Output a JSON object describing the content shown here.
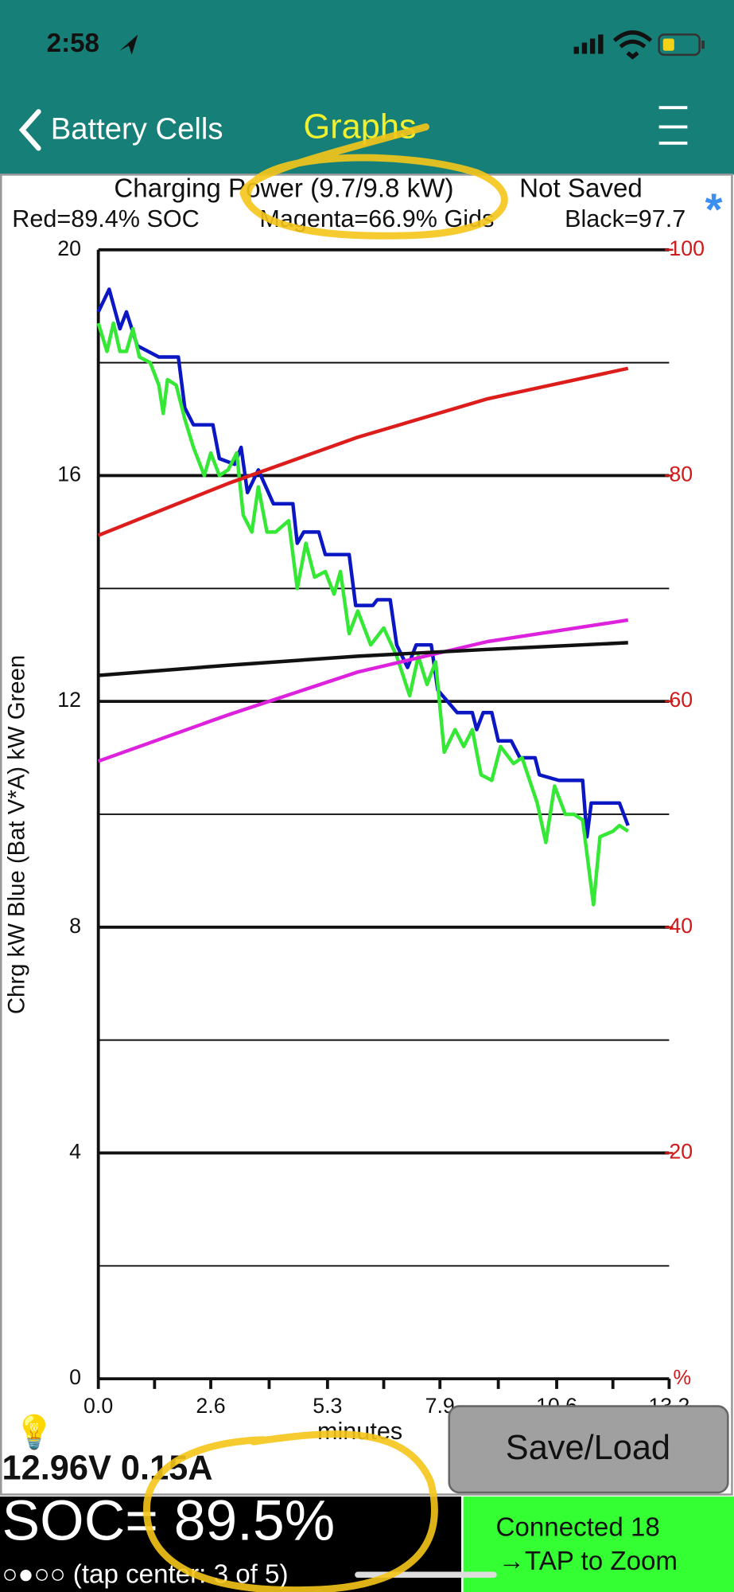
{
  "status_bar": {
    "time": "2:58"
  },
  "nav": {
    "back": "Battery Cells",
    "title": "Graphs"
  },
  "chart_data": {
    "type": "line",
    "title": "Charging Power (9.7/9.8 kW)",
    "save_state": "Not Saved",
    "subtitle": [
      "Red=89.4% SOC",
      "Magenta=66.9% Gids",
      "Black=97.7"
    ],
    "marker": "*",
    "x_label": "minutes",
    "y_label": "Chrg kW Blue  (Bat V*A) kW Green",
    "y2_unit": "%",
    "xlim": [
      0,
      13.2
    ],
    "xticks": [
      {
        "value": 0,
        "label": "0.0"
      },
      2.6,
      5.3,
      7.9,
      10.6,
      13.2
    ],
    "minor_xticks": [
      1.3,
      3.95,
      6.6,
      9.25,
      11.9
    ],
    "ylim": [
      0,
      20
    ],
    "yticks": [
      0,
      4,
      8,
      12,
      16,
      20
    ],
    "minor_yticks": [
      2,
      6,
      10,
      14,
      18
    ],
    "y2lim": [
      0,
      100
    ],
    "y2ticks": [
      20,
      40,
      60,
      80,
      100
    ],
    "series": [
      {
        "color": "#0c17c4",
        "x": [
          0,
          0.25,
          0.5,
          0.65,
          0.9,
          1.4,
          1.85,
          2.0,
          2.2,
          2.65,
          2.8,
          3.15,
          3.3,
          3.45,
          3.7,
          4.05,
          4.5,
          4.6,
          4.75,
          5.1,
          5.25,
          5.8,
          5.95,
          6.35,
          6.45,
          6.75,
          6.9,
          7.15,
          7.35,
          7.7,
          7.85,
          8.3,
          8.65,
          8.75,
          8.9,
          9.1,
          9.25,
          9.55,
          9.75,
          10.1,
          10.2,
          10.65,
          11.2,
          11.3,
          11.4,
          12.05,
          12.25
        ],
        "values": [
          18.9,
          19.3,
          18.6,
          18.9,
          18.3,
          18.1,
          18.1,
          17.2,
          16.9,
          16.9,
          16.3,
          16.2,
          16.5,
          15.7,
          16.1,
          15.5,
          15.5,
          14.8,
          15.0,
          15.0,
          14.6,
          14.6,
          13.7,
          13.7,
          13.8,
          13.8,
          13.0,
          12.6,
          13.0,
          13.0,
          12.2,
          11.8,
          11.8,
          11.5,
          11.8,
          11.8,
          11.3,
          11.3,
          11.0,
          11.0,
          10.7,
          10.6,
          10.6,
          9.6,
          10.2,
          10.2,
          9.8
        ]
      },
      {
        "color": "#35e835",
        "x": [
          0,
          0.2,
          0.35,
          0.5,
          0.65,
          0.8,
          0.95,
          1.2,
          1.4,
          1.5,
          1.6,
          1.8,
          2.0,
          2.2,
          2.45,
          2.6,
          2.8,
          3.0,
          3.2,
          3.35,
          3.55,
          3.7,
          3.9,
          4.1,
          4.4,
          4.6,
          4.8,
          5.0,
          5.25,
          5.45,
          5.6,
          5.8,
          6.0,
          6.3,
          6.6,
          6.9,
          7.2,
          7.4,
          7.6,
          7.8,
          8.0,
          8.25,
          8.45,
          8.65,
          8.85,
          9.1,
          9.3,
          9.6,
          9.8,
          10.15,
          10.35,
          10.55,
          10.8,
          11.0,
          11.2,
          11.45,
          11.6,
          11.9,
          12.05,
          12.25
        ],
        "values": [
          18.7,
          18.2,
          18.7,
          18.2,
          18.2,
          18.6,
          18.1,
          18.0,
          17.6,
          17.1,
          17.7,
          17.6,
          17.0,
          16.5,
          16.0,
          16.4,
          16.0,
          16.1,
          16.4,
          15.3,
          15.0,
          15.8,
          15.0,
          15.0,
          15.2,
          14.0,
          14.8,
          14.2,
          14.3,
          13.9,
          14.3,
          13.2,
          13.6,
          13.0,
          13.3,
          12.8,
          12.1,
          12.8,
          12.3,
          12.7,
          11.1,
          11.5,
          11.2,
          11.5,
          10.7,
          10.6,
          11.2,
          10.9,
          11.0,
          10.2,
          9.5,
          10.5,
          10.0,
          10.0,
          9.9,
          8.4,
          9.6,
          9.7,
          9.8,
          9.7
        ]
      },
      {
        "color": "#dd1c1c",
        "axis": "y2",
        "x": [
          0,
          3,
          6,
          9,
          12.25
        ],
        "values": [
          74.7,
          79.3,
          83.4,
          86.8,
          89.5
        ]
      },
      {
        "color": "#dd22dd",
        "axis": "y2",
        "x": [
          0,
          3,
          6,
          9,
          12.25
        ],
        "values": [
          54.7,
          58.8,
          62.6,
          65.3,
          67.2
        ]
      },
      {
        "color": "#111111",
        "axis": "y2",
        "x": [
          0,
          3,
          6,
          9,
          12.25
        ],
        "values": [
          62.3,
          63.2,
          64.0,
          64.6,
          65.2
        ]
      }
    ]
  },
  "readout": {
    "voltage_current": "12.96V 0.15A",
    "soc": "SOC= 89.5%",
    "page": "○●○○ (tap center: 3 of 5)"
  },
  "button": "Save/Load",
  "status": [
    "Connected 18",
    "→TAP to Zoom"
  ]
}
